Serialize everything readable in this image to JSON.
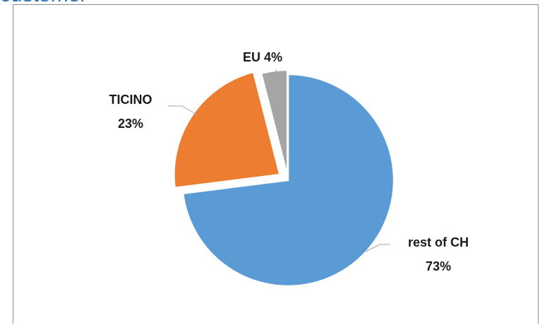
{
  "page": {
    "title": "customer"
  },
  "chart_data": {
    "type": "pie",
    "title": "",
    "categories": [
      "EU",
      "TICINO",
      "rest of CH"
    ],
    "values": [
      4,
      23,
      73
    ],
    "labels": [
      "EU 4%",
      "TICINO 23%",
      "rest of CH 73%"
    ],
    "colors": [
      "#A5A5A5",
      "#ED7D31",
      "#5B9BD5"
    ],
    "exploded": [
      "EU",
      "TICINO"
    ],
    "legend": "none"
  }
}
